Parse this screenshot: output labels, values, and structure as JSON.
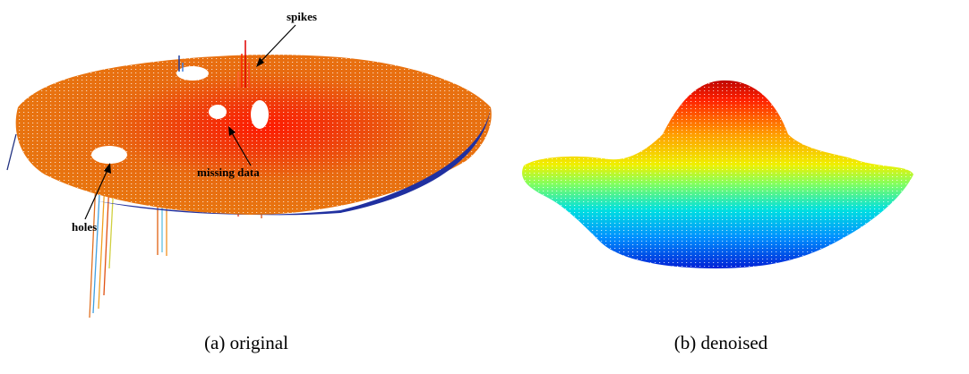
{
  "figure": {
    "panels": [
      {
        "caption": "(a) original",
        "annotations": [
          "spikes",
          "missing data",
          "holes"
        ]
      },
      {
        "caption": "(b) denoised"
      }
    ]
  }
}
